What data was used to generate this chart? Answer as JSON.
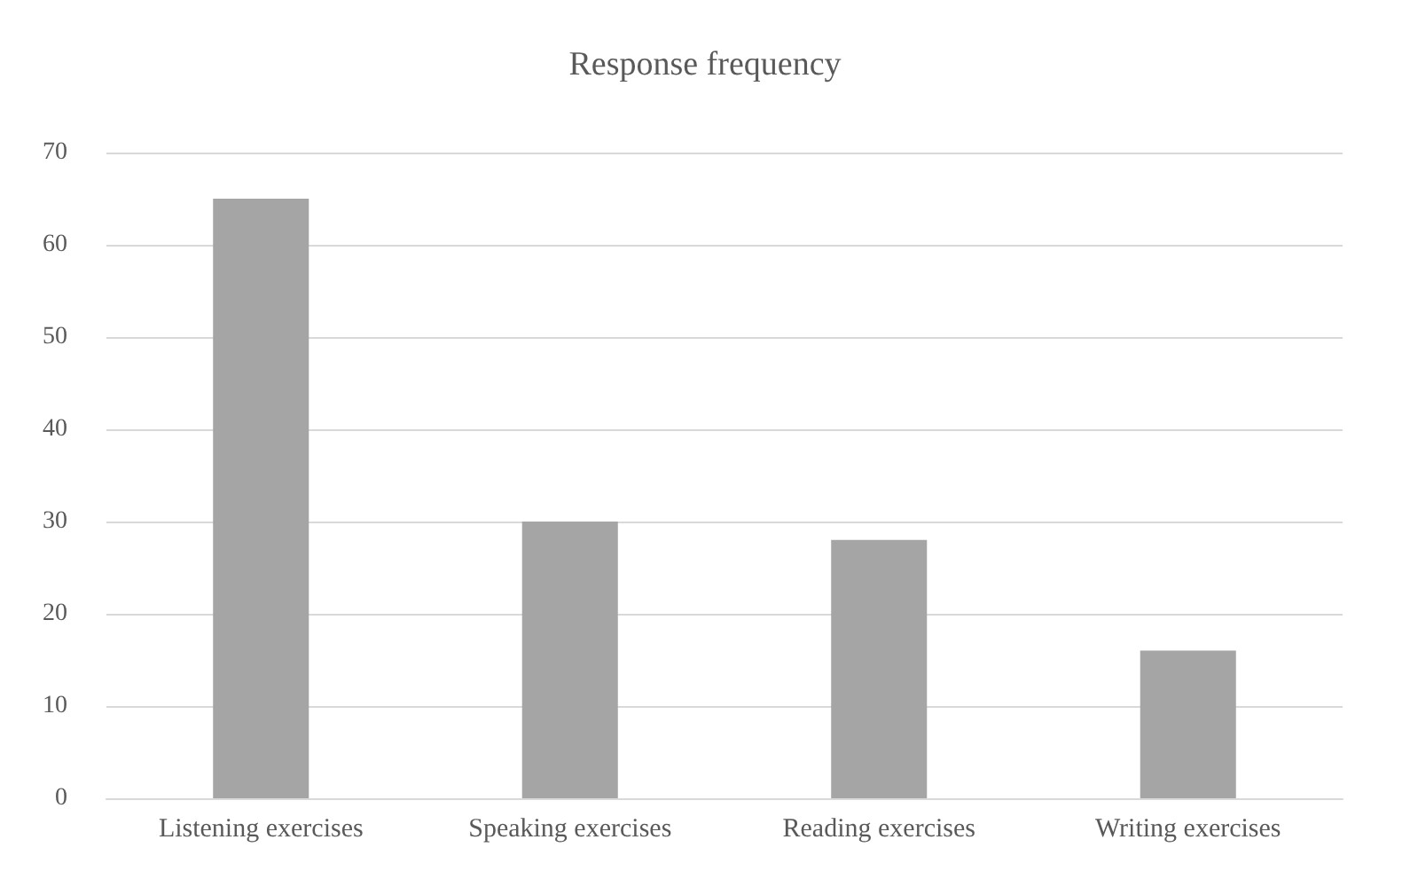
{
  "chart_data": {
    "type": "bar",
    "title": "Response frequency",
    "categories": [
      "Listening exercises",
      "Speaking exercises",
      "Reading exercises",
      "Writing exercises"
    ],
    "values": [
      65,
      30,
      28,
      16
    ],
    "color": "#a5a5a5",
    "ylim": [
      0,
      70
    ],
    "yticks": [
      0,
      10,
      20,
      30,
      40,
      50,
      60,
      70
    ],
    "grid": "y"
  }
}
